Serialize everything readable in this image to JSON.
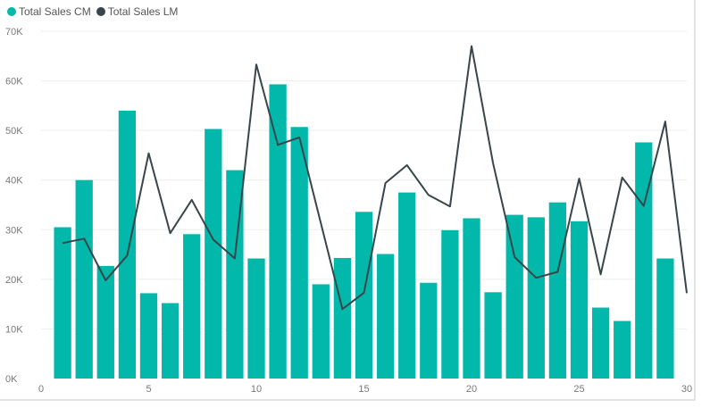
{
  "chart_data": {
    "type": "bar",
    "title": "",
    "xlabel": "",
    "ylabel": "",
    "x": [
      1,
      2,
      3,
      4,
      5,
      6,
      7,
      8,
      9,
      10,
      11,
      12,
      13,
      14,
      15,
      16,
      17,
      18,
      19,
      20,
      21,
      22,
      23,
      24,
      25,
      26,
      27,
      28,
      29,
      30
    ],
    "xlim": [
      0,
      30
    ],
    "ylim": [
      0,
      70000
    ],
    "x_ticks": [
      0,
      5,
      10,
      15,
      20,
      25,
      30
    ],
    "x_tick_labels": [
      "0",
      "5",
      "10",
      "15",
      "20",
      "25",
      "30"
    ],
    "y_ticks": [
      0,
      10000,
      20000,
      30000,
      40000,
      50000,
      60000,
      70000
    ],
    "y_tick_labels": [
      "0K",
      "10K",
      "20K",
      "30K",
      "40K",
      "50K",
      "60K",
      "70K"
    ],
    "grid": true,
    "legend_position": "top-left",
    "series": [
      {
        "name": "Total Sales CM",
        "type": "bar",
        "color": "#01b8aa",
        "x": [
          1,
          2,
          3,
          4,
          5,
          6,
          7,
          8,
          9,
          10,
          11,
          12,
          13,
          14,
          15,
          16,
          17,
          18,
          19,
          20,
          21,
          22,
          23,
          24,
          25,
          26,
          27,
          28,
          29
        ],
        "values": [
          30500,
          40000,
          22700,
          54000,
          17200,
          15200,
          29100,
          50300,
          42000,
          24200,
          59300,
          50700,
          19000,
          24300,
          33600,
          25100,
          37500,
          19300,
          29900,
          32300,
          17400,
          33000,
          32500,
          35500,
          31700,
          14300,
          11600,
          47600,
          24200
        ]
      },
      {
        "name": "Total Sales LM",
        "type": "line",
        "color": "#374649",
        "x": [
          1,
          2,
          3,
          4,
          5,
          6,
          7,
          8,
          9,
          10,
          11,
          12,
          13,
          14,
          15,
          16,
          17,
          18,
          19,
          20,
          21,
          22,
          23,
          24,
          25,
          26,
          27,
          28,
          29,
          30
        ],
        "values": [
          27300,
          28200,
          19800,
          24800,
          45400,
          29300,
          36000,
          28000,
          24200,
          63300,
          47100,
          48600,
          31300,
          14000,
          17300,
          39400,
          43000,
          37000,
          34700,
          67000,
          43400,
          24500,
          20300,
          21500,
          40300,
          21000,
          40500,
          34800,
          51800,
          17200
        ]
      }
    ]
  }
}
